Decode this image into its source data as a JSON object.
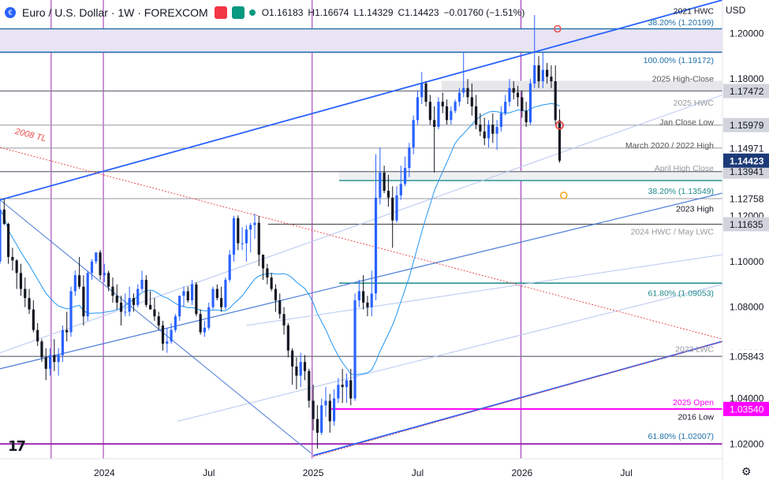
{
  "header": {
    "symbol": "Euro / U.S. Dollar · 1W · FOREXCOM",
    "sell_label": "",
    "buy_label": "",
    "open": "O1.16183",
    "high": "H1.16674",
    "low": "L1.14329",
    "close": "C1.14423",
    "change": "−0.01760 (−1.51%)",
    "currency": "USD"
  },
  "chart_data": {
    "type": "candlestick",
    "symbol": "EUR/USD",
    "timeframe": "1W",
    "ylim": [
      1.0136,
      1.2146
    ],
    "x_ticks": [
      {
        "x": 2024.0,
        "label": "2024"
      },
      {
        "x": 2024.5,
        "label": "Jul"
      },
      {
        "x": 2025.0,
        "label": "2025"
      },
      {
        "x": 2025.5,
        "label": "Jul"
      },
      {
        "x": 2026.0,
        "label": "2026"
      },
      {
        "x": 2026.5,
        "label": "Jul"
      }
    ],
    "y_ticks": [
      1.02,
      1.04,
      1.06,
      1.08,
      1.1,
      1.12,
      1.14,
      1.16,
      1.18,
      1.2
    ],
    "y_tick_labels": [
      "1.02000",
      "1.04000",
      "1.06000",
      "1.08000",
      "1.10000",
      "1.12000",
      "1.14000",
      "1.16000",
      "1.18000",
      "1.20000"
    ],
    "last_price": 1.14423,
    "last_price_label": "1.14423",
    "price_labels": [
      {
        "price": 1.17472,
        "label": "1.17472",
        "color": "#d1d4dc",
        "text": "#131722"
      },
      {
        "price": 1.15979,
        "label": "1.15979",
        "color": "#d1d4dc",
        "text": "#131722"
      },
      {
        "price": 1.14971,
        "label": "1.14971",
        "color": "#ffffff",
        "text": "#131722"
      },
      {
        "price": 1.13941,
        "label": "1.13941",
        "color": "#d1d4dc",
        "text": "#131722"
      },
      {
        "price": 1.12758,
        "label": "1.12758",
        "color": "#ffffff",
        "text": "#131722"
      },
      {
        "price": 1.11635,
        "label": "1.11635",
        "color": "#d1d4dc",
        "text": "#131722"
      },
      {
        "price": 1.05843,
        "label": "1.05843",
        "color": "#ffffff",
        "text": "#131722"
      },
      {
        "price": 1.0354,
        "label": "1.03540",
        "color": "#ff00ff",
        "text": "#ffffff"
      }
    ],
    "horizontal_levels": [
      {
        "price": 1.20199,
        "color": "#1e6fa8",
        "width": 1.4
      },
      {
        "price": 1.19172,
        "color": "#1e6fa8",
        "width": 1.4
      },
      {
        "price": 1.17472,
        "color": "#787b86",
        "width": 1.4
      },
      {
        "price": 1.15979,
        "color": "#9598a1",
        "width": 1
      },
      {
        "price": 1.14971,
        "color": "#9598a1",
        "width": 1
      },
      {
        "price": 1.13941,
        "color": "#787b86",
        "width": 1.4
      },
      {
        "price": 1.13549,
        "color": "#1e8a8a",
        "width": 1.4
      },
      {
        "price": 1.12758,
        "color": "#9598a1",
        "width": 1
      },
      {
        "price": 1.11635,
        "color": "#555555",
        "width": 1.2
      },
      {
        "price": 1.09053,
        "color": "#1e8a8a",
        "width": 1.4
      },
      {
        "price": 1.05843,
        "color": "#787b86",
        "width": 1.4
      },
      {
        "price": 1.0354,
        "color": "#ff00ff",
        "width": 2
      },
      {
        "price": 1.02007,
        "color": "#9c27b0",
        "width": 2
      }
    ],
    "annotations": [
      {
        "label": "2021 HWC",
        "price": 1.21,
        "color": "#131722"
      },
      {
        "label": "38.20% (1.20199)",
        "price": 1.2049,
        "color": "#1e6fa8"
      },
      {
        "label": "100.00% (1.19172)",
        "price": 1.1883,
        "color": "#1e6fa8"
      },
      {
        "label": "2025 High-Close",
        "price": 1.1802,
        "color": "#555555"
      },
      {
        "label": "2025 HWC",
        "price": 1.1697,
        "color": "#9598a1"
      },
      {
        "label": "Jan Close Low",
        "price": 1.1612,
        "color": "#555555"
      },
      {
        "label": "March 2020 / 2022 High",
        "price": 1.151,
        "color": "#555555"
      },
      {
        "label": "April High Close",
        "price": 1.141,
        "color": "#9598a1"
      },
      {
        "label": "38.20% (1.13549)",
        "price": 1.1311,
        "color": "#1e8a8a"
      },
      {
        "label": "2023 High",
        "price": 1.1233,
        "color": "#131722"
      },
      {
        "label": "2024 HWC / May LWC",
        "price": 1.1132,
        "color": "#9598a1"
      },
      {
        "label": "61.80% (1.09053)",
        "price": 1.0863,
        "color": "#1e8a8a"
      },
      {
        "label": "2023 LWC",
        "price": 1.0617,
        "color": "#9598a1"
      },
      {
        "label": "2025 Open",
        "price": 1.0385,
        "color": "#ff00ff"
      },
      {
        "label": "2016 Low",
        "price": 1.032,
        "color": "#131722"
      },
      {
        "label": "61.80% (1.02007)",
        "price": 1.0237,
        "color": "#1e6fa8"
      }
    ],
    "trendline_label": {
      "label": "2008 TL",
      "x": 2023.57,
      "price": 1.156,
      "color": "#e84d4d"
    },
    "vertical_lines": [
      2023.745,
      2023.995,
      2024.995,
      2025.995
    ],
    "candles": [
      [
        2023.5,
        1.1,
        1.127,
        1.099,
        1.1228
      ],
      [
        2023.52,
        1.1228,
        1.1276,
        1.116,
        1.1165
      ],
      [
        2023.54,
        1.1165,
        1.117,
        1.099,
        1.102
      ],
      [
        2023.56,
        1.102,
        1.106,
        1.096,
        1.1005
      ],
      [
        2023.58,
        1.1005,
        1.101,
        1.088,
        1.095
      ],
      [
        2023.6,
        1.095,
        1.099,
        1.085,
        1.088
      ],
      [
        2023.62,
        1.088,
        1.093,
        1.08,
        1.084
      ],
      [
        2023.64,
        1.084,
        1.088,
        1.077,
        1.079
      ],
      [
        2023.66,
        1.079,
        1.083,
        1.069,
        1.07
      ],
      [
        2023.68,
        1.07,
        1.073,
        1.063,
        1.065
      ],
      [
        2023.7,
        1.065,
        1.066,
        1.056,
        1.058
      ],
      [
        2023.72,
        1.058,
        1.062,
        1.048,
        1.053
      ],
      [
        2023.74,
        1.053,
        1.062,
        1.05,
        1.059
      ],
      [
        2023.76,
        1.059,
        1.066,
        1.052,
        1.056
      ],
      [
        2023.78,
        1.056,
        1.062,
        1.05,
        1.059
      ],
      [
        2023.8,
        1.059,
        1.072,
        1.056,
        1.07
      ],
      [
        2023.82,
        1.07,
        1.078,
        1.065,
        1.069
      ],
      [
        2023.84,
        1.069,
        1.089,
        1.067,
        1.087
      ],
      [
        2023.86,
        1.087,
        1.096,
        1.085,
        1.094
      ],
      [
        2023.88,
        1.094,
        1.102,
        1.088,
        1.089
      ],
      [
        2023.9,
        1.089,
        1.094,
        1.072,
        1.076
      ],
      [
        2023.92,
        1.076,
        1.096,
        1.074,
        1.095
      ],
      [
        2023.94,
        1.095,
        1.101,
        1.092,
        1.1
      ],
      [
        2023.96,
        1.1,
        1.104,
        1.099,
        1.104
      ],
      [
        2023.98,
        1.104,
        1.105,
        1.092,
        1.094
      ],
      [
        2024.0,
        1.094,
        1.099,
        1.091,
        1.095
      ],
      [
        2024.02,
        1.095,
        1.096,
        1.087,
        1.089
      ],
      [
        2024.04,
        1.089,
        1.093,
        1.082,
        1.085
      ],
      [
        2024.06,
        1.085,
        1.09,
        1.079,
        1.082
      ],
      [
        2024.08,
        1.082,
        1.085,
        1.072,
        1.078
      ],
      [
        2024.1,
        1.078,
        1.086,
        1.076,
        1.078
      ],
      [
        2024.12,
        1.078,
        1.089,
        1.076,
        1.084
      ],
      [
        2024.14,
        1.084,
        1.086,
        1.078,
        1.081
      ],
      [
        2024.16,
        1.081,
        1.09,
        1.08,
        1.088
      ],
      [
        2024.18,
        1.088,
        1.096,
        1.087,
        1.092
      ],
      [
        2024.2,
        1.092,
        1.094,
        1.08,
        1.081
      ],
      [
        2024.22,
        1.081,
        1.087,
        1.08,
        1.079
      ],
      [
        2024.24,
        1.079,
        1.084,
        1.074,
        1.076
      ],
      [
        2024.26,
        1.076,
        1.078,
        1.07,
        1.072
      ],
      [
        2024.28,
        1.072,
        1.074,
        1.061,
        1.064
      ],
      [
        2024.3,
        1.064,
        1.071,
        1.06,
        1.065
      ],
      [
        2024.32,
        1.065,
        1.073,
        1.064,
        1.07
      ],
      [
        2024.34,
        1.07,
        1.077,
        1.069,
        1.076
      ],
      [
        2024.36,
        1.076,
        1.085,
        1.074,
        1.085
      ],
      [
        2024.38,
        1.085,
        1.089,
        1.08,
        1.087
      ],
      [
        2024.4,
        1.087,
        1.089,
        1.082,
        1.083
      ],
      [
        2024.42,
        1.083,
        1.092,
        1.081,
        1.09
      ],
      [
        2024.44,
        1.09,
        1.091,
        1.076,
        1.077
      ],
      [
        2024.46,
        1.077,
        1.079,
        1.068,
        1.069
      ],
      [
        2024.48,
        1.069,
        1.074,
        1.067,
        1.071
      ],
      [
        2024.5,
        1.071,
        1.082,
        1.07,
        1.08
      ],
      [
        2024.52,
        1.08,
        1.089,
        1.079,
        1.088
      ],
      [
        2024.54,
        1.088,
        1.09,
        1.083,
        1.084
      ],
      [
        2024.56,
        1.084,
        1.089,
        1.078,
        1.08
      ],
      [
        2024.58,
        1.08,
        1.093,
        1.079,
        1.092
      ],
      [
        2024.6,
        1.092,
        1.105,
        1.091,
        1.103
      ],
      [
        2024.62,
        1.103,
        1.12,
        1.1,
        1.119
      ],
      [
        2024.64,
        1.119,
        1.1202,
        1.105,
        1.108
      ],
      [
        2024.66,
        1.108,
        1.115,
        1.105,
        1.108
      ],
      [
        2024.68,
        1.108,
        1.116,
        1.1,
        1.114
      ],
      [
        2024.7,
        1.114,
        1.117,
        1.104,
        1.116
      ],
      [
        2024.72,
        1.116,
        1.121,
        1.11,
        1.117
      ],
      [
        2024.74,
        1.117,
        1.12,
        1.098,
        1.103
      ],
      [
        2024.76,
        1.103,
        1.103,
        1.092,
        1.097
      ],
      [
        2024.78,
        1.097,
        1.099,
        1.09,
        1.093
      ],
      [
        2024.8,
        1.093,
        1.095,
        1.087,
        1.088
      ],
      [
        2024.82,
        1.088,
        1.09,
        1.078,
        1.083
      ],
      [
        2024.84,
        1.083,
        1.086,
        1.075,
        1.077
      ],
      [
        2024.86,
        1.077,
        1.08,
        1.068,
        1.072
      ],
      [
        2024.88,
        1.072,
        1.073,
        1.058,
        1.061
      ],
      [
        2024.9,
        1.061,
        1.062,
        1.046,
        1.054
      ],
      [
        2024.92,
        1.054,
        1.058,
        1.044,
        1.05
      ],
      [
        2024.94,
        1.05,
        1.06,
        1.045,
        1.056
      ],
      [
        2024.96,
        1.056,
        1.059,
        1.048,
        1.052
      ],
      [
        2024.98,
        1.052,
        1.053,
        1.036,
        1.039
      ],
      [
        2025.0,
        1.039,
        1.046,
        1.026,
        1.031
      ],
      [
        2025.02,
        1.031,
        1.037,
        1.018,
        1.025
      ],
      [
        2025.04,
        1.025,
        1.04,
        1.024,
        1.037
      ],
      [
        2025.06,
        1.037,
        1.045,
        1.032,
        1.039
      ],
      [
        2025.08,
        1.039,
        1.042,
        1.025,
        1.03
      ],
      [
        2025.1,
        1.03,
        1.044,
        1.028,
        1.04
      ],
      [
        2025.12,
        1.04,
        1.049,
        1.038,
        1.046
      ],
      [
        2025.14,
        1.046,
        1.053,
        1.038,
        1.045
      ],
      [
        2025.16,
        1.045,
        1.051,
        1.038,
        1.048
      ],
      [
        2025.18,
        1.048,
        1.053,
        1.037,
        1.04
      ],
      [
        2025.2,
        1.04,
        1.086,
        1.039,
        1.083
      ],
      [
        2025.22,
        1.083,
        1.092,
        1.08,
        1.087
      ],
      [
        2025.24,
        1.087,
        1.094,
        1.079,
        1.082
      ],
      [
        2025.26,
        1.082,
        1.085,
        1.076,
        1.08
      ],
      [
        2025.28,
        1.08,
        1.096,
        1.076,
        1.086
      ],
      [
        2025.3,
        1.086,
        1.147,
        1.083,
        1.128
      ],
      [
        2025.32,
        1.128,
        1.15,
        1.125,
        1.139
      ],
      [
        2025.34,
        1.139,
        1.142,
        1.13,
        1.131
      ],
      [
        2025.36,
        1.131,
        1.138,
        1.124,
        1.128
      ],
      [
        2025.38,
        1.128,
        1.133,
        1.106,
        1.118
      ],
      [
        2025.4,
        1.118,
        1.133,
        1.117,
        1.129
      ],
      [
        2025.42,
        1.129,
        1.142,
        1.127,
        1.134
      ],
      [
        2025.44,
        1.134,
        1.146,
        1.133,
        1.141
      ],
      [
        2025.46,
        1.141,
        1.152,
        1.137,
        1.15
      ],
      [
        2025.48,
        1.15,
        1.164,
        1.147,
        1.162
      ],
      [
        2025.5,
        1.162,
        1.175,
        1.16,
        1.172
      ],
      [
        2025.52,
        1.172,
        1.183,
        1.169,
        1.178
      ],
      [
        2025.54,
        1.178,
        1.179,
        1.168,
        1.17
      ],
      [
        2025.56,
        1.17,
        1.173,
        1.16,
        1.162
      ],
      [
        2025.58,
        1.162,
        1.168,
        1.139,
        1.159
      ],
      [
        2025.6,
        1.159,
        1.172,
        1.158,
        1.17
      ],
      [
        2025.62,
        1.17,
        1.174,
        1.165,
        1.168
      ],
      [
        2025.64,
        1.168,
        1.171,
        1.16,
        1.162
      ],
      [
        2025.66,
        1.162,
        1.168,
        1.16,
        1.166
      ],
      [
        2025.68,
        1.166,
        1.171,
        1.165,
        1.17
      ],
      [
        2025.7,
        1.17,
        1.176,
        1.168,
        1.174
      ],
      [
        2025.72,
        1.174,
        1.192,
        1.172,
        1.176
      ],
      [
        2025.74,
        1.176,
        1.18,
        1.169,
        1.172
      ],
      [
        2025.76,
        1.172,
        1.178,
        1.164,
        1.168
      ],
      [
        2025.78,
        1.168,
        1.173,
        1.158,
        1.16
      ],
      [
        2025.8,
        1.16,
        1.165,
        1.155,
        1.157
      ],
      [
        2025.82,
        1.157,
        1.163,
        1.151,
        1.154
      ],
      [
        2025.84,
        1.154,
        1.162,
        1.15,
        1.16
      ],
      [
        2025.86,
        1.16,
        1.165,
        1.152,
        1.156
      ],
      [
        2025.88,
        1.156,
        1.162,
        1.149,
        1.159
      ],
      [
        2025.9,
        1.159,
        1.168,
        1.157,
        1.165
      ],
      [
        2025.92,
        1.165,
        1.173,
        1.164,
        1.17
      ],
      [
        2025.94,
        1.17,
        1.18,
        1.168,
        1.176
      ],
      [
        2025.96,
        1.176,
        1.179,
        1.171,
        1.174
      ],
      [
        2025.98,
        1.174,
        1.177,
        1.168,
        1.172
      ],
      [
        2026.0,
        1.172,
        1.175,
        1.163,
        1.166
      ],
      [
        2026.02,
        1.166,
        1.17,
        1.159,
        1.161
      ],
      [
        2026.04,
        1.161,
        1.18,
        1.16,
        1.178
      ],
      [
        2026.06,
        1.178,
        1.208,
        1.176,
        1.186
      ],
      [
        2026.08,
        1.186,
        1.19,
        1.176,
        1.179
      ],
      [
        2026.1,
        1.179,
        1.192,
        1.176,
        1.184
      ],
      [
        2026.12,
        1.184,
        1.187,
        1.178,
        1.181
      ],
      [
        2026.14,
        1.181,
        1.186,
        1.176,
        1.179
      ],
      [
        2026.16,
        1.179,
        1.186,
        1.16,
        1.162
      ],
      [
        2026.18,
        1.1618,
        1.1667,
        1.1433,
        1.1442
      ]
    ]
  }
}
